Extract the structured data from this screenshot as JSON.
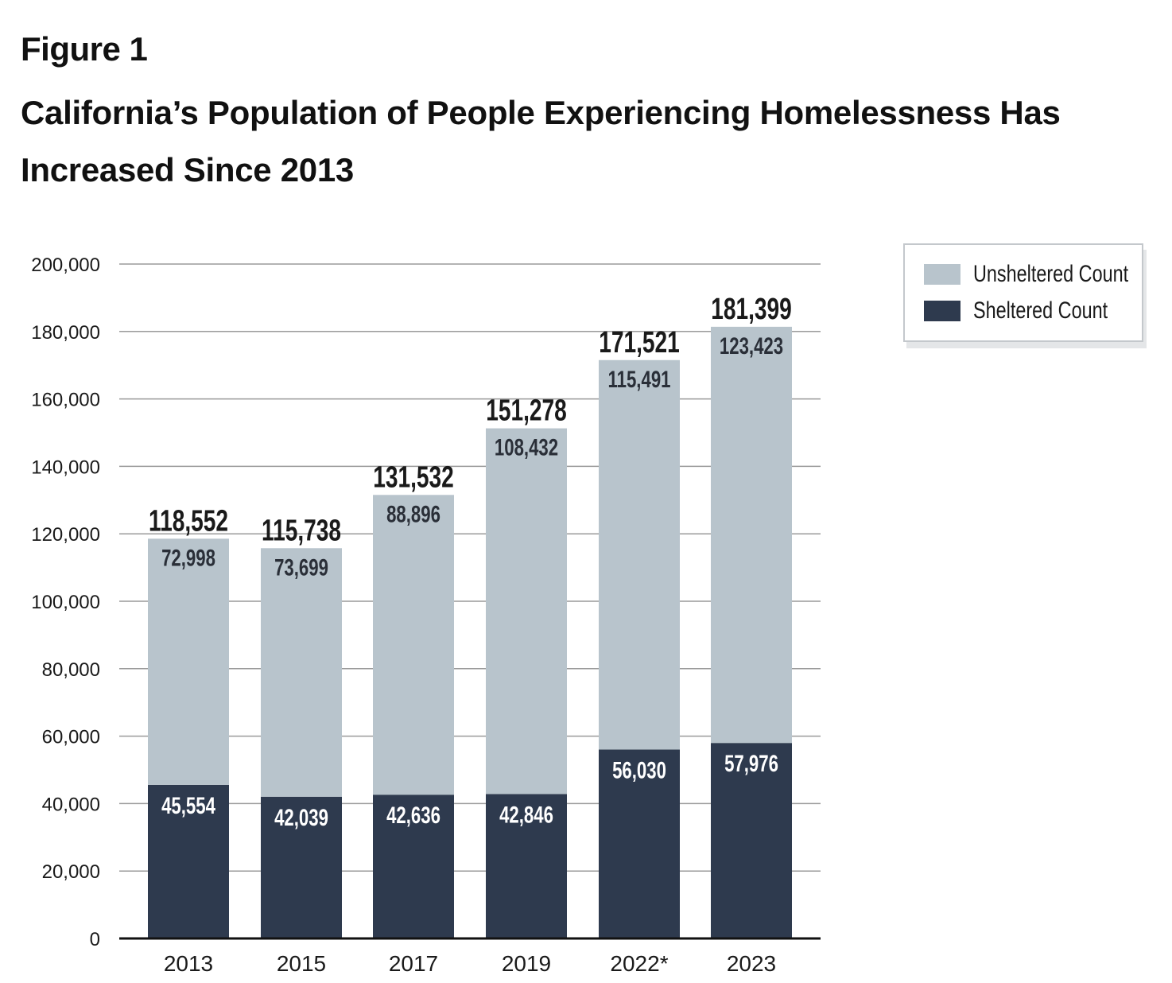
{
  "figure_label": "Figure 1",
  "title": "California’s Population of People Experiencing Homelessness Has Increased Since 2013",
  "colors": {
    "unsheltered": "#b8c4cc",
    "sheltered": "#2e3a4e",
    "grid": "#9a9a9a",
    "axis": "#111111",
    "text": "#1a1a1a"
  },
  "legend": {
    "unsheltered_label": "Unsheltered Count",
    "sheltered_label": "Sheltered Count"
  },
  "chart_data": {
    "type": "bar",
    "stacked": true,
    "categories": [
      "2013",
      "2015",
      "2017",
      "2019",
      "2022*",
      "2023"
    ],
    "series": [
      {
        "name": "Sheltered Count",
        "values": [
          45554,
          42039,
          42636,
          42846,
          56030,
          57976
        ]
      },
      {
        "name": "Unsheltered Count",
        "values": [
          72998,
          73699,
          88896,
          108432,
          115491,
          123423
        ]
      }
    ],
    "totals": [
      118552,
      115738,
      131532,
      151278,
      171521,
      181399
    ],
    "value_labels": {
      "sheltered": [
        "45,554",
        "42,039",
        "42,636",
        "42,846",
        "56,030",
        "57,976"
      ],
      "unsheltered": [
        "72,998",
        "73,699",
        "88,896",
        "108,432",
        "115,491",
        "123,423"
      ],
      "totals": [
        "118,552",
        "115,738",
        "131,532",
        "151,278",
        "171,521",
        "181,399"
      ]
    },
    "y_ticks": [
      "0",
      "20,000",
      "40,000",
      "60,000",
      "80,000",
      "100,000",
      "120,000",
      "140,000",
      "160,000",
      "180,000",
      "200,000"
    ],
    "ylim": [
      0,
      200000
    ],
    "y_step": 20000,
    "grid": true,
    "legend_position": "top-right",
    "xlabel": "",
    "ylabel": ""
  }
}
